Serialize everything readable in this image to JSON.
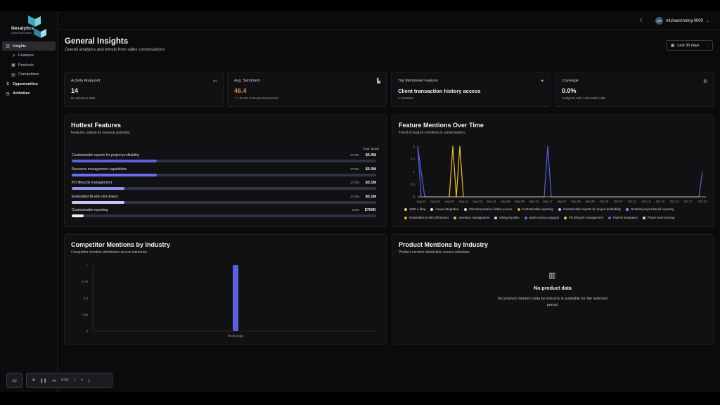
{
  "app": {
    "logo_name": "Nexalytics",
    "logo_tagline": "Data Exploration"
  },
  "sidebar": {
    "items": [
      {
        "label": "Insights",
        "icon": "bar-chart-icon",
        "active": true
      },
      {
        "label": "Features",
        "icon": "trend-icon"
      },
      {
        "label": "Products",
        "icon": "box-icon"
      },
      {
        "label": "Competitors",
        "icon": "building-icon"
      },
      {
        "label": "Opportunities",
        "icon": "dollar-icon"
      },
      {
        "label": "Activities",
        "icon": "clock-icon"
      }
    ]
  },
  "header": {
    "username": "michaelshokry.0000",
    "avatar_initials": "MS"
  },
  "page": {
    "title": "General Insights",
    "subtitle": "Overall analytics and trends from sales conversations",
    "date_range": "Last 30 days"
  },
  "stats": [
    {
      "label": "Activity Analyzed",
      "value": "14",
      "note": "No previous data",
      "icon": "message-icon"
    },
    {
      "label": "Avg. Sentiment",
      "value": "46.4",
      "delta": "↗ +46.4%",
      "note": "from previous period",
      "icon": "chart-icon"
    },
    {
      "label": "Top Mentioned Feature",
      "value": "Client transaction history access",
      "note": "4 mentions",
      "icon": "sparkle-icon"
    },
    {
      "label": "Coverage",
      "value": "0.0%",
      "note": "Analyzed calls / Recorded calls",
      "icon": "globe-icon"
    }
  ],
  "hottest": {
    "title": "Hottest Features",
    "subtitle": "Features ranked by revenue potential",
    "total": "Total: $18M",
    "rows": [
      {
        "name": "Customizable reports for project profitability",
        "pct": "27.9%",
        "amount": "$5.0M",
        "fill": 0.279,
        "color": "#5b5fe0"
      },
      {
        "name": "Resource management capabilities",
        "pct": "27.9%",
        "amount": "$5.0M",
        "fill": 0.279,
        "color": "#6a6ee8"
      },
      {
        "name": "PO lifecycle management",
        "pct": "17.3%",
        "amount": "$3.1M",
        "fill": 0.173,
        "color": "#8e92ee"
      },
      {
        "name": "Embedded BI with drill downs",
        "pct": "17.3%",
        "amount": "$3.1M",
        "fill": 0.173,
        "color": "#c4c6f6"
      },
      {
        "name": "Customizable reporting",
        "pct": "3.9%",
        "amount": "$700K",
        "fill": 0.039,
        "color": "#f0f0f6"
      }
    ]
  },
  "mentions": {
    "title": "Feature Mentions Over Time",
    "subtitle": "Trend of feature mentions in conversations",
    "legend": [
      {
        "label": "1099 e-filing",
        "color": "#e8c85a"
      },
      {
        "label": "Asana integration",
        "color": "#e8e8ea"
      },
      {
        "label": "Client transaction history access",
        "color": "#d8d8dc"
      },
      {
        "label": "Customizable reporting",
        "color": "#e89a3a"
      },
      {
        "label": "Customizable reports for project profitability",
        "color": "#b8bcf0"
      },
      {
        "label": "Detailed project-based reporting",
        "color": "#8a8ee8"
      },
      {
        "label": "Embedded BI with drill downs",
        "color": "#e8a040"
      },
      {
        "label": "Inventory management",
        "color": "#f0b440"
      },
      {
        "label": "Kitting bundles",
        "color": "#d0d4f6"
      },
      {
        "label": "Multi-currency support",
        "color": "#6a6ee8"
      },
      {
        "label": "PO lifecycle management",
        "color": "#f0c030"
      },
      {
        "label": "PayPal integration",
        "color": "#5b5fe0"
      },
      {
        "label": "Phase level tracking",
        "color": "#f0d880"
      }
    ]
  },
  "chart_data": [
    {
      "type": "line",
      "title": "Feature Mentions Over Time",
      "x": [
        "Aug 12",
        "Aug 16",
        "Aug 20",
        "Aug 24",
        "Aug 28",
        "Sep 01",
        "Sep 05",
        "Sep 09",
        "Sep 13",
        "Sep 17",
        "Sep 21",
        "Sep 25",
        "Sep 29",
        "Oct 03",
        "Oct 07",
        "Oct 11",
        "Oct 15",
        "Oct 19",
        "Oct 23",
        "Oct 27",
        "Oct 31"
      ],
      "yticks": [
        0,
        0.5,
        1,
        1.5,
        2
      ],
      "ylim": [
        0,
        2
      ],
      "series": [
        {
          "name": "Client transaction history access",
          "color": "#5b5fe0",
          "points": [
            [
              "Aug 12",
              0
            ],
            [
              "Aug 11",
              2
            ],
            [
              "Aug 13",
              0
            ],
            [
              "Sep 16",
              0
            ],
            [
              "Sep 17",
              2
            ],
            [
              "Sep 18",
              0
            ],
            [
              "Oct 30",
              0
            ],
            [
              "Oct 31",
              1
            ]
          ]
        },
        {
          "name": "PO lifecycle management",
          "color": "#f0c030",
          "points": [
            [
              "Aug 20",
              0
            ],
            [
              "Aug 21",
              2
            ],
            [
              "Aug 22",
              0
            ],
            [
              "Aug 23",
              2
            ],
            [
              "Aug 24",
              0
            ]
          ]
        }
      ]
    },
    {
      "type": "bar",
      "title": "Competitor Mentions by Industry",
      "categories": [
        "Technology"
      ],
      "values": [
        1
      ],
      "yticks": [
        0,
        0.25,
        0.5,
        0.75,
        1
      ],
      "ylim": [
        0,
        1
      ]
    }
  ],
  "competitor": {
    "title": "Competitor Mentions by Industry",
    "subtitle": "Competitor mention distribution across industries"
  },
  "product": {
    "title": "Product Mentions by Industry",
    "subtitle": "Product mention distribution across industries",
    "empty_title": "No product data",
    "empty_desc": "No product mention data by industry is available for the selected period."
  },
  "recorder": {
    "time": "0:00"
  }
}
